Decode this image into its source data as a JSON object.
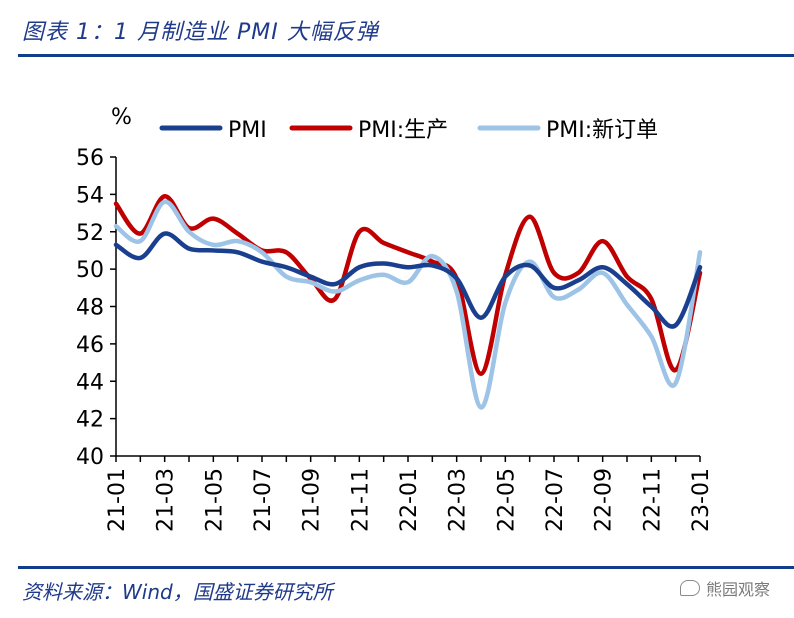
{
  "header": {
    "title": "图表 1：1 月制造业 PMI 大幅反弹"
  },
  "footer": {
    "source": "资料来源：Wind，国盛证券研究所",
    "watermark": "熊园观察"
  },
  "chart_data": {
    "type": "line",
    "ylabel": "%",
    "ylim": [
      40,
      56
    ],
    "yticks": [
      40,
      42,
      44,
      46,
      48,
      50,
      52,
      54,
      56
    ],
    "categories": [
      "21-01",
      "21-02",
      "21-03",
      "21-04",
      "21-05",
      "21-06",
      "21-07",
      "21-08",
      "21-09",
      "21-10",
      "21-11",
      "21-12",
      "22-01",
      "22-02",
      "22-03",
      "22-04",
      "22-05",
      "22-06",
      "22-07",
      "22-08",
      "22-09",
      "22-10",
      "22-11",
      "22-12",
      "23-01"
    ],
    "xtick_labels": [
      "21-01",
      "21-03",
      "21-05",
      "21-07",
      "21-09",
      "21-11",
      "22-01",
      "22-03",
      "22-05",
      "22-07",
      "22-09",
      "22-11",
      "23-01"
    ],
    "legend_position": "top",
    "grid": false,
    "series": [
      {
        "name": "PMI",
        "color": "#1a3f8f",
        "values": [
          51.3,
          50.6,
          51.9,
          51.1,
          51.0,
          50.9,
          50.4,
          50.1,
          49.6,
          49.2,
          50.1,
          50.3,
          50.1,
          50.2,
          49.5,
          47.4,
          49.6,
          50.2,
          49.0,
          49.4,
          50.1,
          49.2,
          48.0,
          47.0,
          50.1
        ]
      },
      {
        "name": "PMI:生产",
        "color": "#c00000",
        "values": [
          53.5,
          51.9,
          53.9,
          52.2,
          52.7,
          51.9,
          51.0,
          50.9,
          49.5,
          48.4,
          52.0,
          51.4,
          50.9,
          50.4,
          49.5,
          44.4,
          49.7,
          52.8,
          49.8,
          49.8,
          51.5,
          49.6,
          48.4,
          44.6,
          49.8
        ]
      },
      {
        "name": "PMI:新订单",
        "color": "#9dc3e6",
        "values": [
          52.3,
          51.5,
          53.6,
          52.0,
          51.3,
          51.5,
          50.9,
          49.6,
          49.3,
          48.8,
          49.4,
          49.7,
          49.3,
          50.7,
          48.8,
          42.6,
          48.2,
          50.4,
          48.5,
          48.9,
          49.8,
          48.1,
          46.4,
          43.9,
          50.9
        ]
      }
    ]
  }
}
